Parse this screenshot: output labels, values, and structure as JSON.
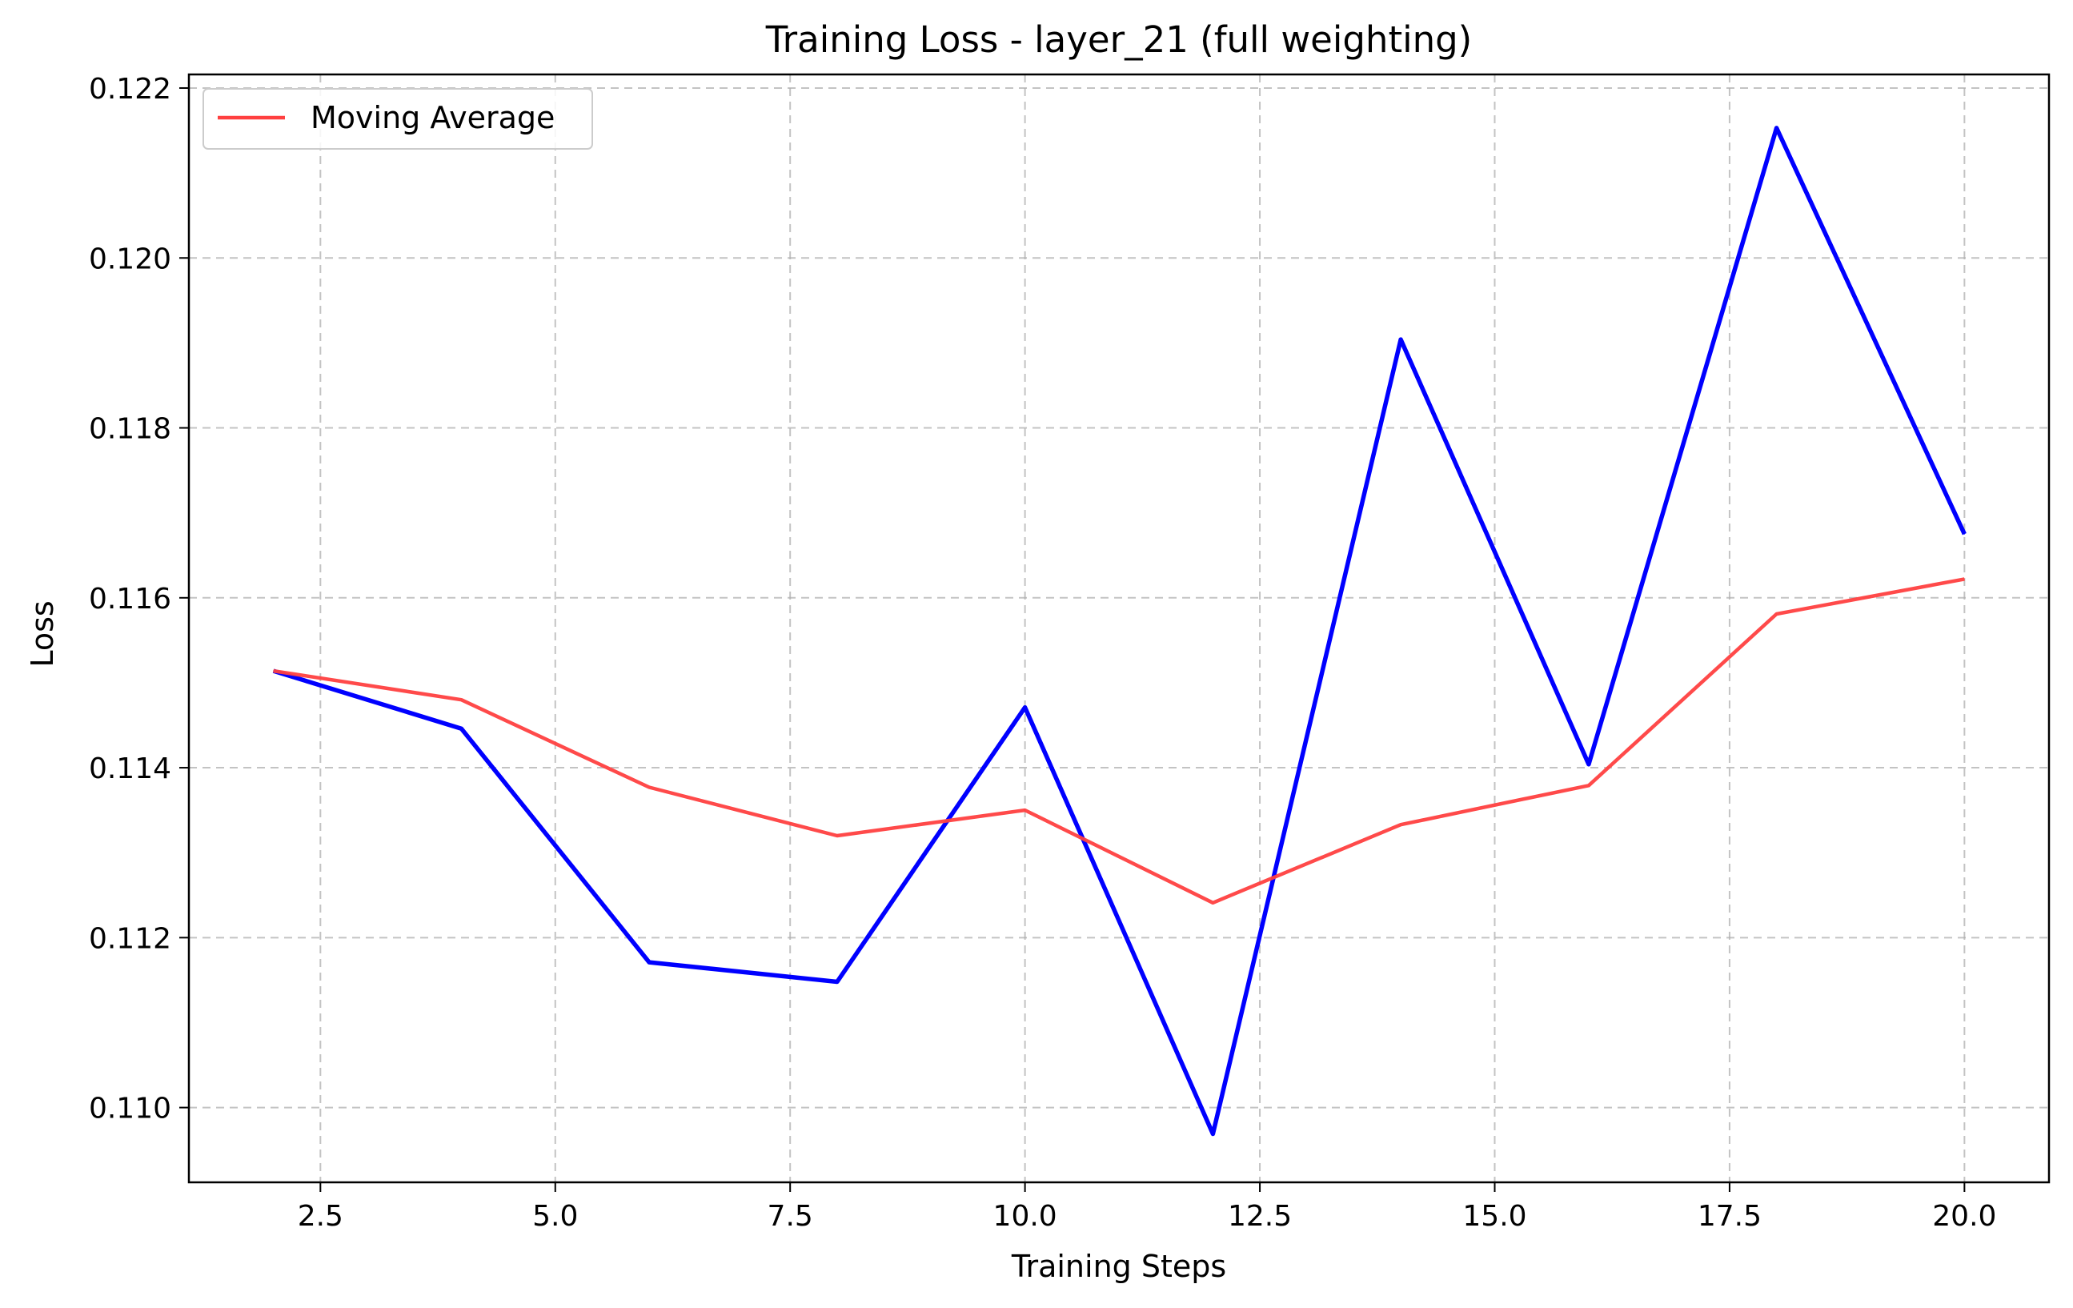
{
  "chart_data": {
    "type": "line",
    "title": "Training Loss - layer_21 (full weighting)",
    "xlabel": "Training Steps",
    "ylabel": "Loss",
    "xlim": [
      1.1,
      20.9
    ],
    "ylim": [
      0.10912,
      0.12216
    ],
    "xticks": [
      2.5,
      5.0,
      7.5,
      10.0,
      12.5,
      15.0,
      17.5,
      20.0
    ],
    "xtick_labels": [
      "2.5",
      "5.0",
      "7.5",
      "10.0",
      "12.5",
      "15.0",
      "17.5",
      "20.0"
    ],
    "yticks": [
      0.11,
      0.112,
      0.114,
      0.116,
      0.118,
      0.12,
      0.122
    ],
    "ytick_labels": [
      "0.110",
      "0.112",
      "0.114",
      "0.116",
      "0.118",
      "0.120",
      "0.122"
    ],
    "grid": true,
    "legend_position": "top-left",
    "x": [
      2,
      4,
      6,
      8,
      10,
      12,
      14,
      16,
      18,
      20
    ],
    "series": [
      {
        "color": "#0000ff",
        "values": [
          0.11514,
          0.11446,
          0.11171,
          0.11148,
          0.11471,
          0.10969,
          0.11904,
          0.11404,
          0.12153,
          0.11675
        ]
      },
      {
        "name": "Moving Average",
        "color": "#ff4040",
        "values": [
          0.11514,
          0.1148,
          0.11377,
          0.1132,
          0.1135,
          0.11241,
          0.11333,
          0.11379,
          0.11581,
          0.11622
        ]
      }
    ],
    "legend": [
      {
        "label": "Moving Average",
        "color": "#ff4040"
      }
    ]
  }
}
